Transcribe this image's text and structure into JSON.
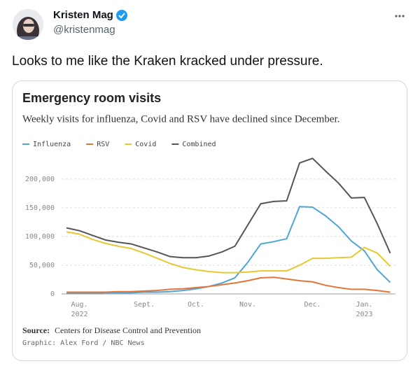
{
  "tweet": {
    "name": "Kristen Mag",
    "handle": "@kristenmag",
    "text": "Looks to me like the Kraken kracked under pressure."
  },
  "chart_data": {
    "type": "line",
    "title": "Emergency room visits",
    "subtitle": "Weekly visits for influenza, Covid and RSV have declined since December.",
    "source_label": "Source:",
    "source": "Centers for Disease Control and Prevention",
    "credit": "Graphic: Alex Ford / NBC News",
    "categories": [
      null,
      "Aug.",
      null,
      null,
      null,
      null,
      "Sept.",
      null,
      null,
      null,
      "Oct.",
      null,
      null,
      null,
      "Nov.",
      null,
      null,
      null,
      null,
      "Dec.",
      null,
      null,
      null,
      "Jan.",
      null,
      null
    ],
    "category_sublabels": [
      null,
      "2022",
      null,
      null,
      null,
      null,
      null,
      null,
      null,
      null,
      null,
      null,
      null,
      null,
      null,
      null,
      null,
      null,
      null,
      null,
      null,
      null,
      null,
      "2023",
      null,
      null
    ],
    "series": [
      {
        "name": "Influenza",
        "color": "#4fa6d6",
        "values": [
          1000,
          1000,
          1000,
          2000,
          2000,
          2000,
          3000,
          3000,
          4000,
          6000,
          9000,
          13000,
          19000,
          28000,
          55000,
          87000,
          91000,
          96000,
          152000,
          151000,
          136000,
          117000,
          92000,
          75000,
          42000,
          20000
        ]
      },
      {
        "name": "RSV",
        "color": "#e2763a",
        "values": [
          3000,
          3000,
          3000,
          3000,
          4000,
          4000,
          5000,
          6000,
          8000,
          9000,
          11000,
          13000,
          16000,
          19000,
          23000,
          28000,
          29000,
          26000,
          23000,
          21000,
          15000,
          11000,
          8000,
          8000,
          6000,
          3000
        ]
      },
      {
        "name": "Covid",
        "color": "#e8c832",
        "values": [
          108000,
          104000,
          95000,
          88000,
          83000,
          79000,
          71000,
          62000,
          53000,
          46000,
          42000,
          39000,
          37000,
          37000,
          38000,
          40000,
          40000,
          40000,
          50000,
          62000,
          62000,
          63000,
          64000,
          81000,
          71000,
          48000
        ]
      },
      {
        "name": "Combined",
        "color": "#555555",
        "values": [
          115000,
          110000,
          102000,
          94000,
          90000,
          87000,
          80000,
          73000,
          65000,
          63000,
          63000,
          66000,
          73000,
          83000,
          120000,
          157000,
          161000,
          162000,
          228000,
          236000,
          214000,
          193000,
          167000,
          168000,
          122000,
          71000
        ]
      }
    ],
    "ylim": [
      0,
      240000
    ],
    "yticks": [
      0,
      {
        "value": 50000,
        "label": "50,000"
      },
      {
        "value": 100000,
        "label": "100,000"
      },
      {
        "value": 150000,
        "label": "150,000"
      },
      {
        "value": 200000,
        "label": "200,000"
      }
    ],
    "grid": true
  }
}
